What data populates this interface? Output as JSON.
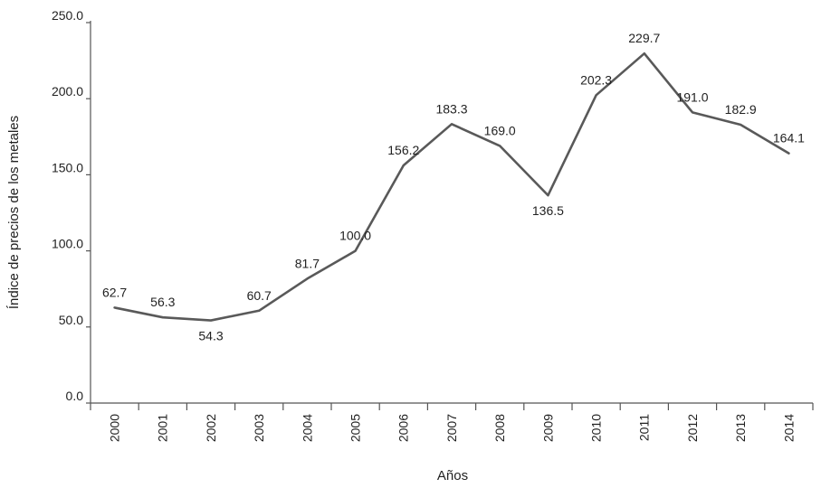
{
  "chart_data": {
    "type": "line",
    "xlabel": "Años",
    "ylabel": "Índice de precios de los metales",
    "categories": [
      "2000",
      "2001",
      "2002",
      "2003",
      "2004",
      "2005",
      "2006",
      "2007",
      "2008",
      "2009",
      "2010",
      "2011",
      "2012",
      "2013",
      "2014"
    ],
    "series": [
      {
        "values": [
          62.7,
          56.3,
          54.3,
          60.7,
          81.7,
          100.0,
          156.2,
          183.3,
          169.0,
          136.5,
          202.3,
          229.7,
          191.0,
          182.9,
          164.1
        ],
        "labels": [
          "62.7",
          "56.3",
          "54.3",
          "60.7",
          "81.7",
          "100.0",
          "156.2",
          "183.3",
          "169.0",
          "136.5",
          "202.3",
          "229.7",
          "191.0",
          "182.9",
          "164.1"
        ],
        "color": "#595959"
      }
    ],
    "ylim": [
      0,
      250
    ],
    "yticks": [
      0,
      50,
      100,
      150,
      200,
      250
    ],
    "ytick_labels": [
      "0.0",
      "50.0",
      "100.0",
      "150.0",
      "200.0",
      "250.0"
    ],
    "grid": false,
    "legend": "none"
  }
}
